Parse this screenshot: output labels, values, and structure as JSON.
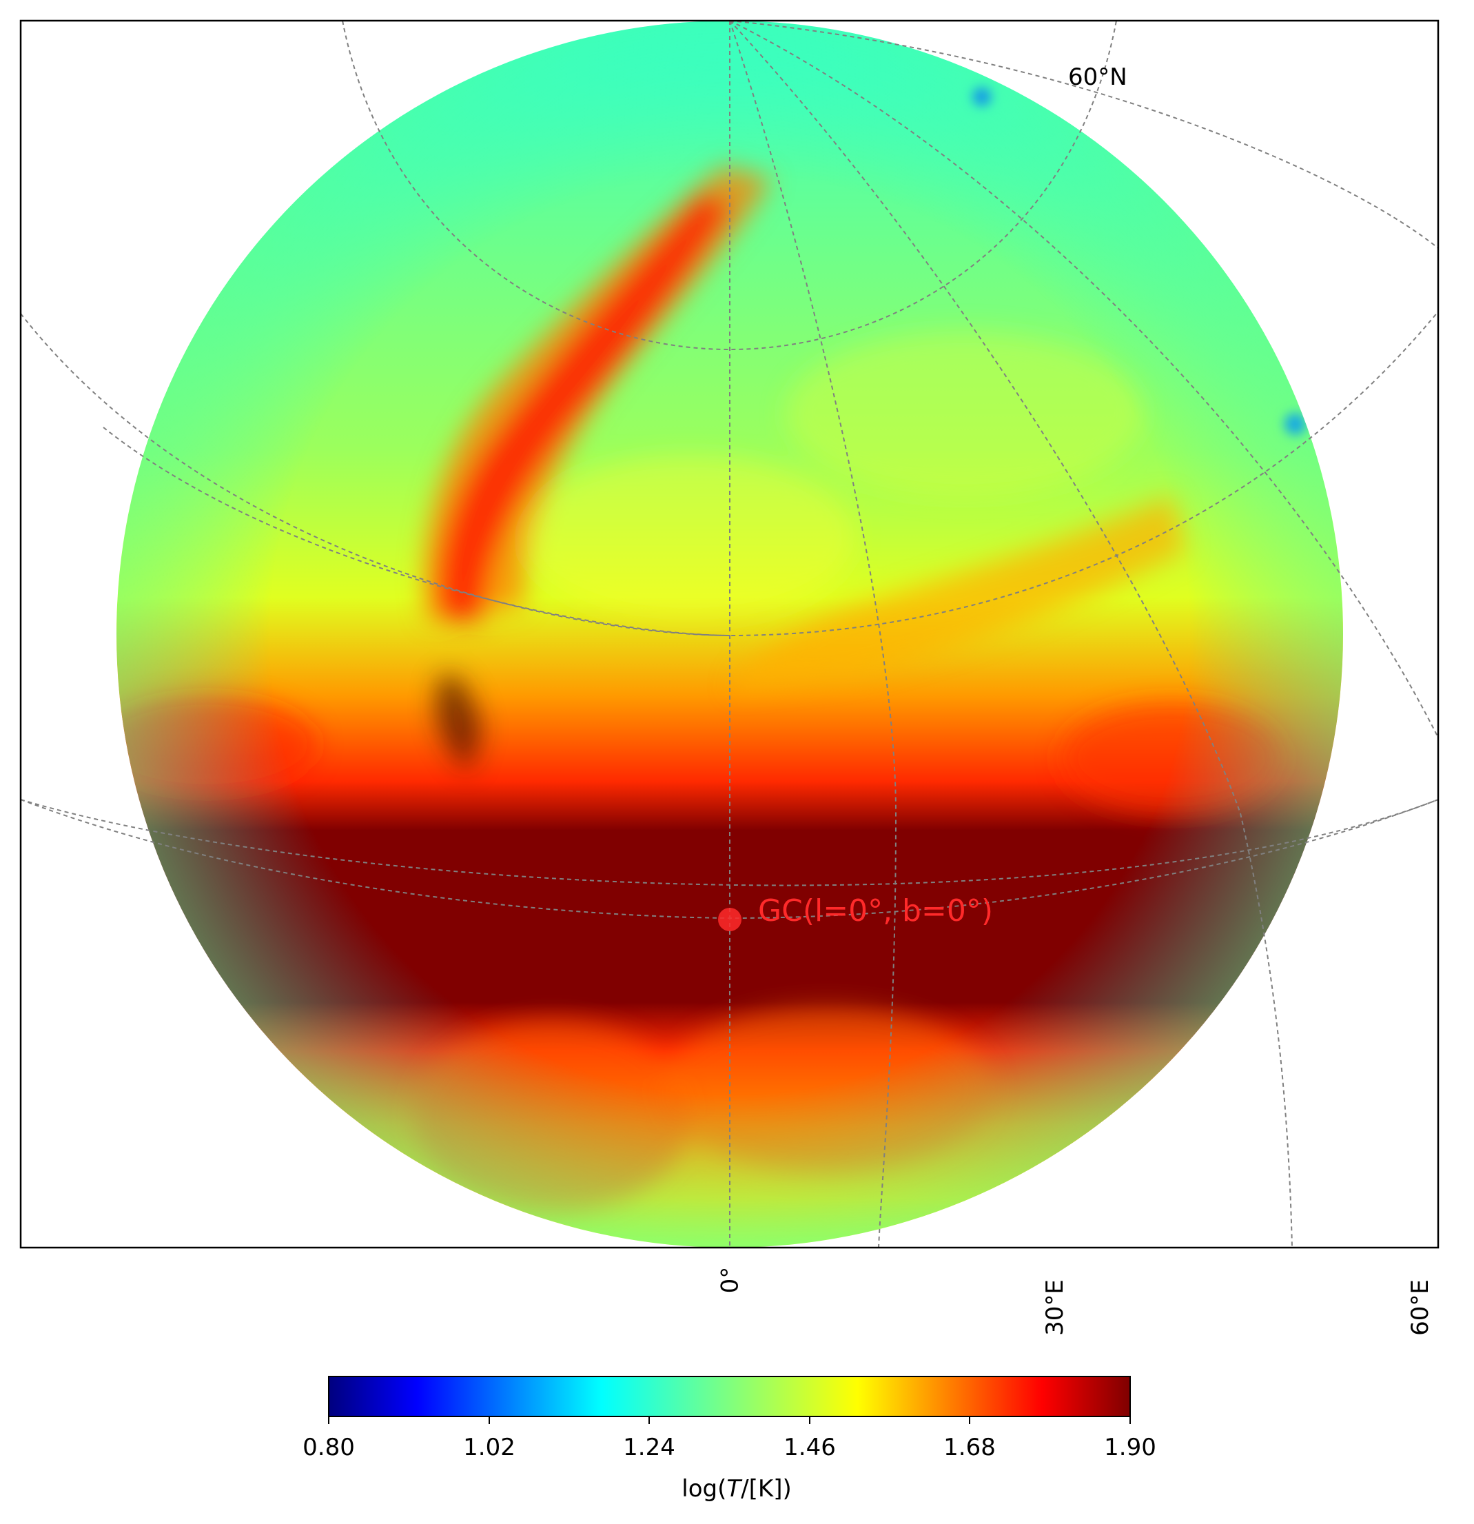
{
  "map": {
    "colormap": "jet",
    "graticule_style": "dashed gray",
    "lat_label": "60°N",
    "lon_labels": [
      "0°",
      "30°E",
      "60°E"
    ],
    "marker": {
      "text": "GC(l=0°, b=0°)",
      "color": "#ff2a2a"
    }
  },
  "colorbar": {
    "ticks": [
      "0.80",
      "1.02",
      "1.24",
      "1.46",
      "1.68",
      "1.90"
    ],
    "label_prefix": "log(",
    "label_var": "T",
    "label_suffix": "/[K])",
    "min": 0.8,
    "max": 1.9
  }
}
